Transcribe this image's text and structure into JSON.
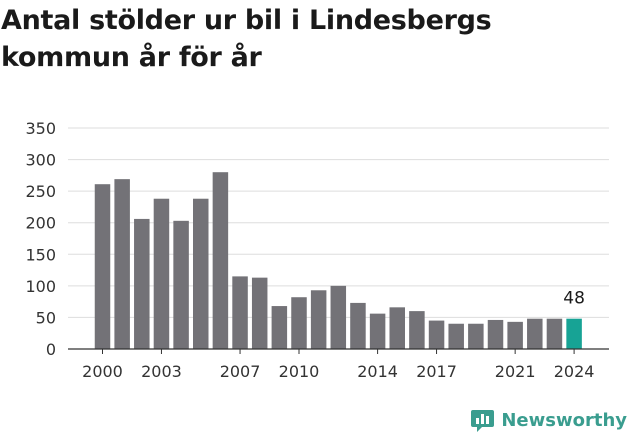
{
  "title": "Antal stölder ur bil i Lindesbergs kommun år för år",
  "brand": {
    "name": "Newsworthy",
    "icon": "newsworthy-logo-icon"
  },
  "colors": {
    "bar": "#737277",
    "highlight": "#17a395",
    "grid": "#dddddd",
    "axis": "#333333",
    "brand": "#3a9d8f"
  },
  "chart_data": {
    "type": "bar",
    "title": "Antal stölder ur bil i Lindesbergs kommun år för år",
    "xlabel": "",
    "ylabel": "",
    "ylim": [
      0,
      350
    ],
    "yticks": [
      0,
      50,
      100,
      150,
      200,
      250,
      300,
      350
    ],
    "categories": [
      "2000",
      "2001",
      "2002",
      "2003",
      "2004",
      "2005",
      "2006",
      "2007",
      "2008",
      "2009",
      "2010",
      "2011",
      "2012",
      "2013",
      "2014",
      "2015",
      "2016",
      "2017",
      "2018",
      "2019",
      "2020",
      "2021",
      "2022",
      "2023",
      "2024"
    ],
    "xtick_labels": [
      "2000",
      "2003",
      "2007",
      "2010",
      "2014",
      "2017",
      "2021",
      "2024"
    ],
    "values": [
      261,
      269,
      206,
      238,
      203,
      238,
      280,
      115,
      113,
      68,
      82,
      93,
      100,
      73,
      56,
      66,
      60,
      45,
      40,
      40,
      46,
      43,
      48,
      48,
      48
    ],
    "highlight": "2024",
    "annotations": [
      {
        "category": "2024",
        "text": "48"
      }
    ],
    "grid": true
  }
}
